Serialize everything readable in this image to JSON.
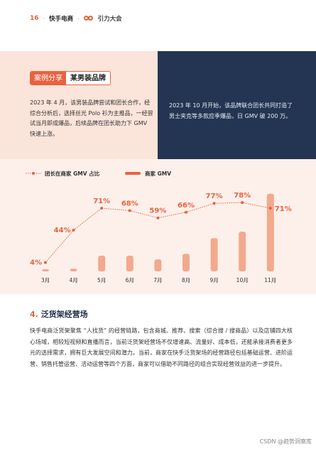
{
  "header": {
    "page_number": "16",
    "separator": "·",
    "brand": "快手电商",
    "sub_brand": "引力大会",
    "logo_icon": "gravity-logo-icon"
  },
  "case_study": {
    "tag": "案例分享",
    "brand_name": "某男装品牌",
    "left_text": "2023 年 4 月，该男装品牌尝试和团长合作，经综合分析后，选择丝光 Polo 衫为主推品，一经尝试当月即成爆品，后续品牌在团长助力下 GMV 快速上涨。",
    "right_text": "2023 年 10 月开始，该品牌联合团长共同打造了男士夹克等多款应季爆品，日 GMV 破 200 万。",
    "colors": {
      "accent": "#e8623f",
      "left_bg": "#fbe4da",
      "right_bg": "#233552"
    }
  },
  "chart_data": {
    "type": "bar",
    "legend_placement": "top-left",
    "categories": [
      "3月",
      "4月",
      "5月",
      "6月",
      "7月",
      "8月",
      "9月",
      "10月",
      "11月"
    ],
    "series": [
      {
        "name": "团长在商家 GMV 占比",
        "kind": "line",
        "style": "dotted",
        "values": [
          4,
          44,
          71,
          68,
          59,
          66,
          77,
          78,
          71
        ],
        "labels": [
          "4%",
          "44%",
          "71%",
          "68%",
          "59%",
          "66%",
          "77%",
          "78%",
          "71%"
        ],
        "color": "#e8623f"
      },
      {
        "name": "商家 GMV",
        "kind": "bar",
        "relative_heights": [
          0.02,
          0.03,
          0.17,
          0.17,
          0.13,
          0.19,
          0.36,
          0.43,
          0.84
        ],
        "color": "#f3a98c"
      }
    ],
    "grid": false
  },
  "section4": {
    "number": "4.",
    "title": "泛货架经营场",
    "body": "快手电商泛货架聚焦 “人找货” 的经营链路，包含商城、推荐、搜索（综合搜 / 搜商品）以及店铺四大核心场域，相较短视频和直播而言，当前泛货架经营场不仅增速高、流量好、成本低，还能承接消费者更多元的选择需求，拥有巨大发展空间和潜力。当前，商家在快手泛货架场的经营路径包括基础运营、进阶运营、销售托管运营、活动运营等四个方面，商家可以借助不同路径的组合实现经营效益的进一步提升。"
  },
  "watermark": "CSDN @趋势洞察库"
}
